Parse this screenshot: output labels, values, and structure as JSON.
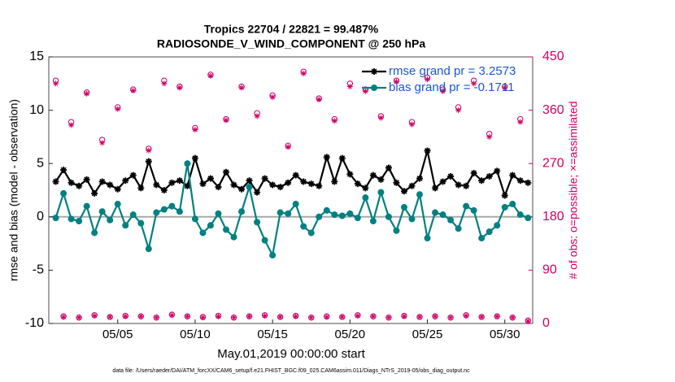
{
  "chart_data": {
    "type": "line",
    "title": "Tropics 22704 / 22821 = 99.487%",
    "subtitle": "RADIOSONDE_V_WIND_COMPONENT @ 250 hPa",
    "xlabel": "May.01,2019 00:00:00 start",
    "ylabel": "rmse and bias (model - observation)",
    "y2label": "# of obs: o=possible; ×=assimilated",
    "footnote": "data file: /Users/raeder/DAI/ATM_forcXX/CAM6_setup/f.e21.FHIST_BGC.f09_025.CAM6assim.011/Diags_NTrS_2019-05/obs_diag_output.nc",
    "xlim": [
      0.55,
      31.8
    ],
    "xticks": [
      {
        "value": 5,
        "label": "05/05"
      },
      {
        "value": 10,
        "label": "05/10"
      },
      {
        "value": 15,
        "label": "05/15"
      },
      {
        "value": 20,
        "label": "05/20"
      },
      {
        "value": 25,
        "label": "05/25"
      },
      {
        "value": 30,
        "label": "05/30"
      }
    ],
    "ylim": [
      -10,
      15
    ],
    "yticks": [
      -10,
      -5,
      0,
      5,
      10,
      15
    ],
    "y2lim": [
      0,
      450
    ],
    "y2ticks": [
      0,
      90,
      180,
      270,
      360,
      450
    ],
    "y2color": "#cc0066",
    "legend": "upper right",
    "x": [
      1,
      1.5,
      2,
      2.5,
      3,
      3.5,
      4,
      4.5,
      5,
      5.5,
      6,
      6.5,
      7,
      7.5,
      8,
      8.5,
      9,
      9.5,
      10,
      10.5,
      11,
      11.5,
      12,
      12.5,
      13,
      13.5,
      14,
      14.5,
      15,
      15.5,
      16,
      16.5,
      17,
      17.5,
      18,
      18.5,
      19,
      19.5,
      20,
      20.5,
      21,
      21.5,
      22,
      22.5,
      23,
      23.5,
      24,
      24.5,
      25,
      25.5,
      26,
      26.5,
      27,
      27.5,
      28,
      28.5,
      29,
      29.5,
      30,
      30.5,
      31,
      31.5
    ],
    "series": [
      {
        "name": "rmse grand pr = 3.2573",
        "color": "#000000",
        "marker": "star",
        "values": [
          3.3,
          4.4,
          3.2,
          2.9,
          3.5,
          2.2,
          3.3,
          3.0,
          2.6,
          3.4,
          3.9,
          2.7,
          5.2,
          3.0,
          2.5,
          3.2,
          3.4,
          2.9,
          5.5,
          3.1,
          3.6,
          2.8,
          4.2,
          3.0,
          2.6,
          3.4,
          2.3,
          3.6,
          3.0,
          2.8,
          3.2,
          3.9,
          3.3,
          3.1,
          2.9,
          5.6,
          3.3,
          5.5,
          4.0,
          3.1,
          2.7,
          3.9,
          3.5,
          4.6,
          3.2,
          2.4,
          2.9,
          3.6,
          6.2,
          2.7,
          3.3,
          3.8,
          3.0,
          2.9,
          4.1,
          3.4,
          3.8,
          4.3,
          2.0,
          3.9,
          3.4,
          3.2
        ]
      },
      {
        "name": "bias grand pr = -0.1711",
        "color": "#008080",
        "marker": "circle",
        "values": [
          -0.1,
          2.2,
          -0.2,
          -0.4,
          1.0,
          -1.5,
          0.5,
          -0.3,
          1.2,
          -0.8,
          0.2,
          -0.6,
          -3.0,
          0.4,
          0.7,
          1.0,
          0.5,
          5.0,
          -0.2,
          -1.5,
          -0.8,
          0.3,
          -1.2,
          -1.9,
          0.5,
          2.8,
          -0.5,
          -2.2,
          -3.6,
          0.4,
          0.3,
          1.2,
          -0.9,
          -1.5,
          0.0,
          0.6,
          0.2,
          0.1,
          0.3,
          -0.1,
          1.8,
          -0.4,
          2.3,
          0.0,
          -1.3,
          0.9,
          -0.2,
          2.1,
          -2.0,
          0.4,
          0.2,
          -0.3,
          -1.1,
          1.0,
          0.6,
          -2.0,
          -1.4,
          -0.8,
          0.9,
          1.2,
          0.2,
          -0.1
        ]
      },
      {
        "axis": "y2",
        "color": "#cc0066",
        "marker": "open-circle",
        "values": [
          410,
          12,
          340,
          10,
          390,
          14,
          310,
          11,
          365,
          13,
          395,
          12,
          295,
          10,
          410,
          15,
          400,
          12,
          330,
          11,
          420,
          13,
          345,
          10,
          400,
          12,
          355,
          14,
          385,
          11,
          300,
          13,
          425,
          10,
          380,
          12,
          345,
          11,
          405,
          14,
          395,
          12,
          350,
          10,
          410,
          13,
          340,
          11,
          415,
          12,
          395,
          10,
          365,
          14,
          410,
          11,
          320,
          12,
          400,
          10,
          345,
          5
        ]
      },
      {
        "axis": "y2",
        "color": "#cc0066",
        "marker": "asterisk",
        "values": [
          405,
          11,
          335,
          10,
          388,
          13,
          305,
          11,
          362,
          12,
          393,
          12,
          292,
          10,
          405,
          14,
          398,
          12,
          327,
          10,
          418,
          12,
          343,
          10,
          398,
          12,
          350,
          13,
          382,
          11,
          298,
          12,
          422,
          10,
          378,
          11,
          342,
          11,
          400,
          13,
          392,
          12,
          347,
          10,
          408,
          12,
          336,
          11,
          412,
          12,
          392,
          10,
          360,
          13,
          405,
          11,
          315,
          12,
          398,
          10,
          340,
          4
        ]
      }
    ]
  }
}
